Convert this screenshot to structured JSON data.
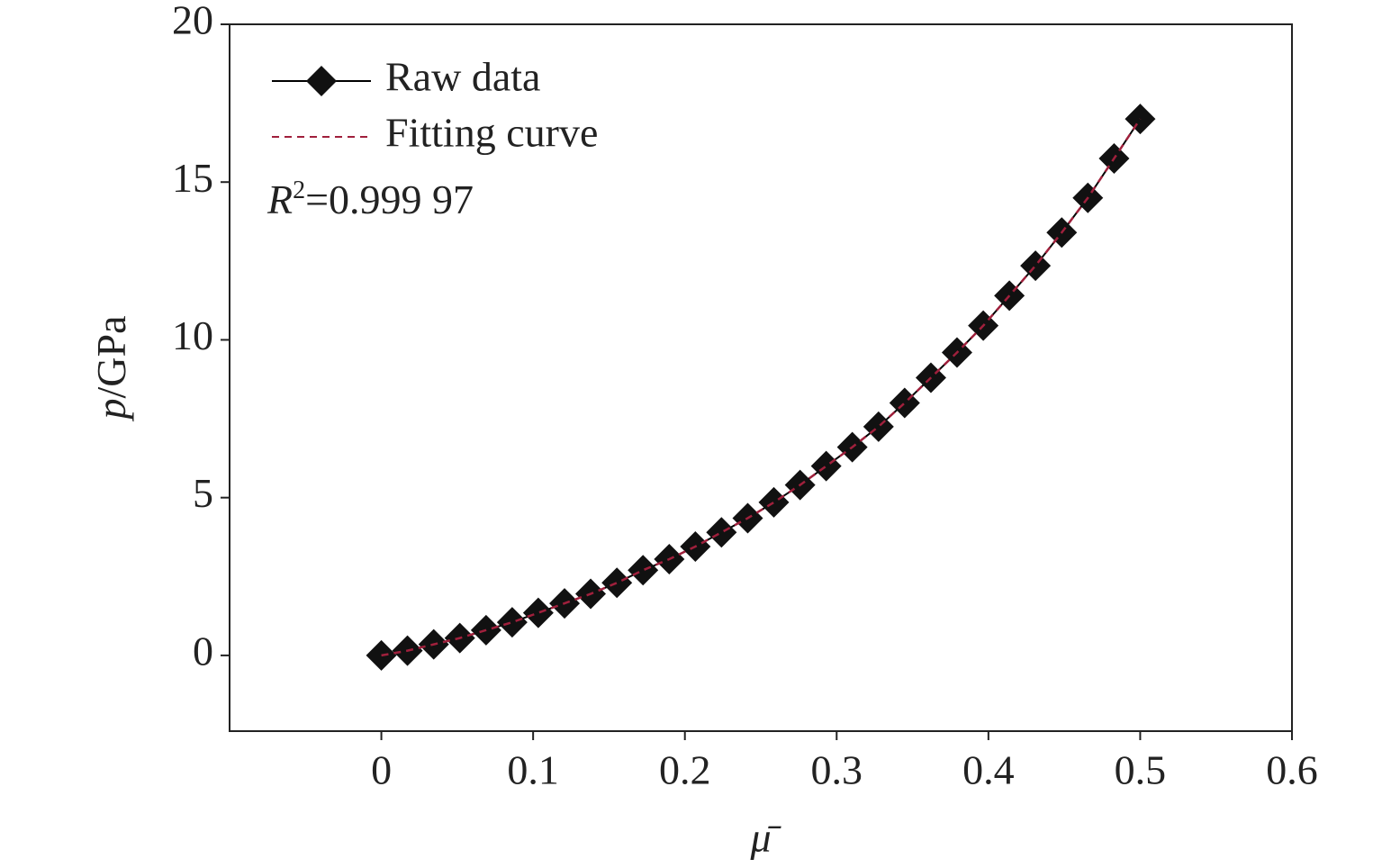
{
  "chart_data": {
    "type": "line",
    "x_label": "μ̄",
    "y_label": {
      "symbol": "p",
      "unit": "/GPa"
    },
    "annotation": {
      "symbol": "R",
      "superscript": "2",
      "text": "=0.999 97"
    },
    "x": [
      0,
      0.0172,
      0.0345,
      0.0517,
      0.069,
      0.0862,
      0.1034,
      0.1207,
      0.1379,
      0.1552,
      0.1724,
      0.1897,
      0.2069,
      0.2241,
      0.2414,
      0.2586,
      0.2759,
      0.2931,
      0.3103,
      0.3276,
      0.3448,
      0.3621,
      0.3793,
      0.3966,
      0.4138,
      0.431,
      0.4483,
      0.4655,
      0.4828,
      0.5
    ],
    "series": [
      {
        "name": "Raw data",
        "color": "#000000",
        "marker": "diamond",
        "values": [
          0,
          0.15,
          0.35,
          0.55,
          0.8,
          1.05,
          1.35,
          1.65,
          1.95,
          2.3,
          2.7,
          3.05,
          3.45,
          3.9,
          4.35,
          4.85,
          5.4,
          6.0,
          6.6,
          7.25,
          8.0,
          8.8,
          9.6,
          10.45,
          11.4,
          12.35,
          13.4,
          14.5,
          15.75,
          17.0
        ]
      },
      {
        "name": "Fitting curve",
        "color": "#a0203c",
        "dashed": true,
        "values": [
          0,
          0.15,
          0.35,
          0.55,
          0.8,
          1.05,
          1.35,
          1.65,
          1.95,
          2.3,
          2.7,
          3.05,
          3.45,
          3.9,
          4.35,
          4.85,
          5.4,
          6.0,
          6.6,
          7.25,
          8.0,
          8.8,
          9.6,
          10.45,
          11.4,
          12.35,
          13.4,
          14.5,
          15.75,
          17.0
        ]
      }
    ],
    "xlim": [
      -0.1,
      0.6
    ],
    "xticks": [
      0,
      0.1,
      0.2,
      0.3,
      0.4,
      0.5,
      0.6
    ],
    "ylim": [
      -2.4,
      20
    ],
    "yticks": [
      0,
      5,
      10,
      15,
      20
    ],
    "legend": "upper left"
  }
}
